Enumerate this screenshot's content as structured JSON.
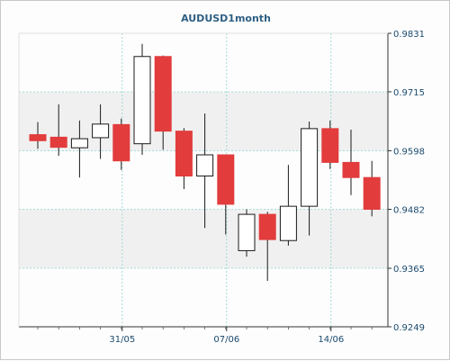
{
  "chart_data": {
    "type": "candlestick",
    "title": "AUDUSD1month",
    "grid": true,
    "ylim": [
      0.9249,
      0.9831
    ],
    "y_ticks": [
      "0.9831",
      "0.9715",
      "0.9598",
      "0.9482",
      "0.9365",
      "0.9249"
    ],
    "x_ticks": [
      {
        "label": "31/05",
        "candle_index": 4
      },
      {
        "label": "07/06",
        "candle_index": 9
      },
      {
        "label": "14/06",
        "candle_index": 14
      }
    ],
    "candles": [
      {
        "open": 0.963,
        "high": 0.9655,
        "low": 0.9602,
        "close": 0.9618
      },
      {
        "open": 0.9625,
        "high": 0.969,
        "low": 0.9588,
        "close": 0.9605
      },
      {
        "open": 0.9604,
        "high": 0.9658,
        "low": 0.9545,
        "close": 0.9622
      },
      {
        "open": 0.9624,
        "high": 0.969,
        "low": 0.9582,
        "close": 0.9651
      },
      {
        "open": 0.965,
        "high": 0.9662,
        "low": 0.956,
        "close": 0.9578
      },
      {
        "open": 0.9612,
        "high": 0.981,
        "low": 0.959,
        "close": 0.9785
      },
      {
        "open": 0.9785,
        "high": 0.9787,
        "low": 0.96,
        "close": 0.9637
      },
      {
        "open": 0.9637,
        "high": 0.9643,
        "low": 0.9522,
        "close": 0.9548
      },
      {
        "open": 0.9548,
        "high": 0.9672,
        "low": 0.9445,
        "close": 0.959
      },
      {
        "open": 0.959,
        "high": 0.959,
        "low": 0.9432,
        "close": 0.9492
      },
      {
        "open": 0.94,
        "high": 0.9482,
        "low": 0.9388,
        "close": 0.9472
      },
      {
        "open": 0.9472,
        "high": 0.9477,
        "low": 0.934,
        "close": 0.9422
      },
      {
        "open": 0.942,
        "high": 0.957,
        "low": 0.941,
        "close": 0.9488
      },
      {
        "open": 0.9488,
        "high": 0.9656,
        "low": 0.943,
        "close": 0.9642
      },
      {
        "open": 0.9642,
        "high": 0.9658,
        "low": 0.9562,
        "close": 0.9575
      },
      {
        "open": 0.9575,
        "high": 0.964,
        "low": 0.951,
        "close": 0.9545
      },
      {
        "open": 0.9545,
        "high": 0.9578,
        "low": 0.9468,
        "close": 0.9482
      }
    ],
    "colors": {
      "up_fill": "#ffffff",
      "down_fill": "#e23c3c",
      "candle_stroke": "#1a1a1a",
      "grid": "#8fd3cf",
      "axis_text": "#1a4a6e",
      "title_text": "#2d5f82",
      "background_band": "#f0f0f0"
    }
  }
}
